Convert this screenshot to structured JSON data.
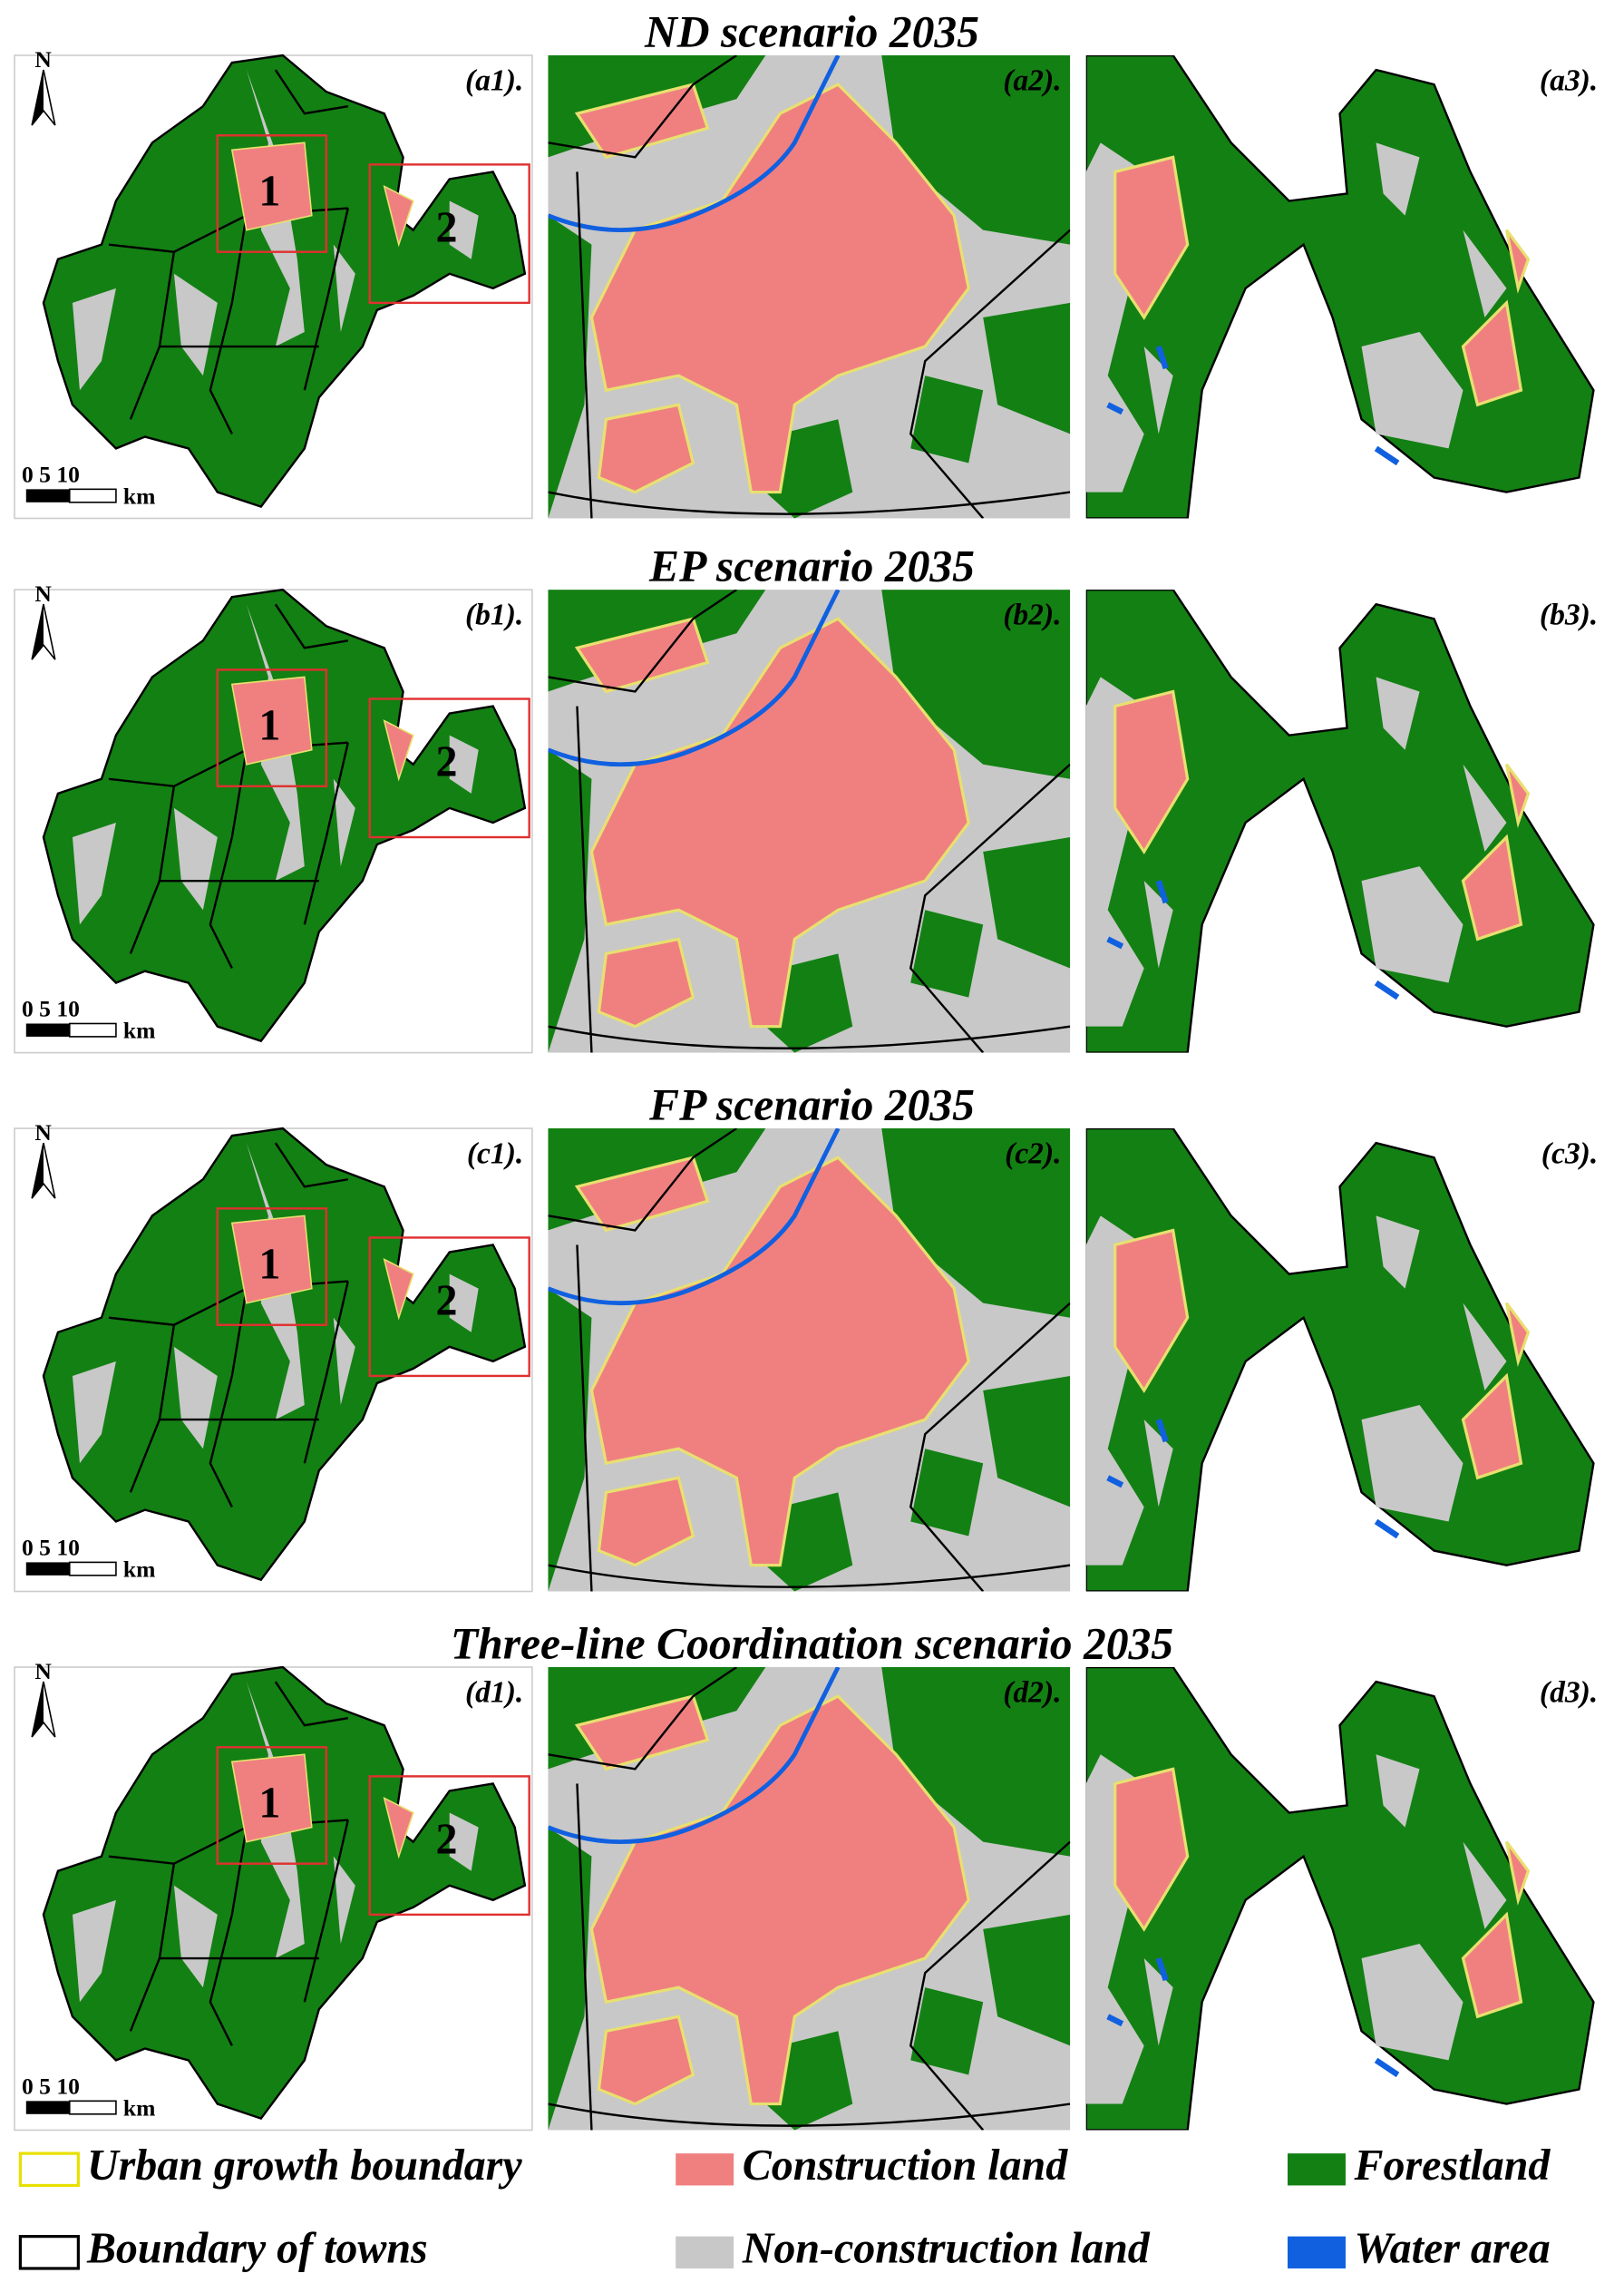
{
  "rows": [
    {
      "title": "ND scenario 2035",
      "panels": [
        "(a1).",
        "(a2).",
        "(a3)."
      ]
    },
    {
      "title": "EP scenario 2035",
      "panels": [
        "(b1).",
        "(b2).",
        "(b3)."
      ]
    },
    {
      "title": "FP scenario 2035",
      "panels": [
        "(c1).",
        "(c2).",
        "(c3)."
      ]
    },
    {
      "title": "Three-line Coordination scenario 2035",
      "panels": [
        "(d1).",
        "(d2).",
        "(d3)."
      ]
    }
  ],
  "map_labels": {
    "north": "N",
    "scale": "0 5 10",
    "unit": "km",
    "zone1": "1",
    "zone2": "2"
  },
  "legend": [
    "Urban growth boundary",
    "Construction land",
    "Forestland",
    "Boundary of towns",
    "Non-construction land",
    "Water area"
  ]
}
